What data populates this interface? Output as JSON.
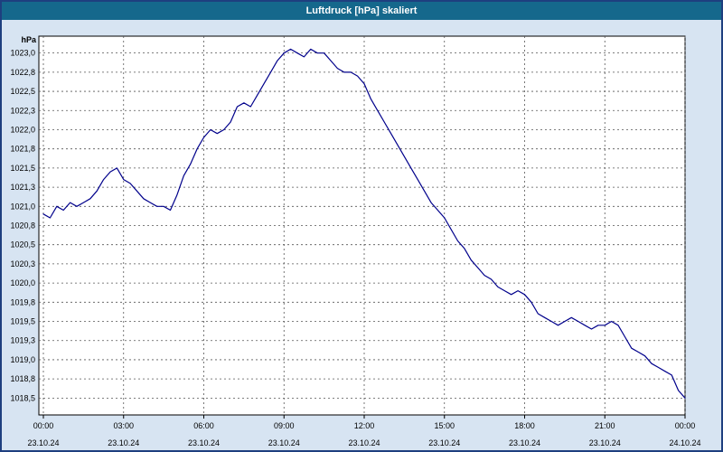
{
  "window": {
    "title": "Luftdruck [hPa] skaliert"
  },
  "colors": {
    "titlebar": "#15688c",
    "frame": "#1e3f7f",
    "background": "#d7e4f2",
    "plot_bg": "#ffffff",
    "grid": "#555555",
    "line": "#00008b"
  },
  "chart_data": {
    "type": "line",
    "title": "Luftdruck [hPa] skaliert",
    "ylabel": "hPa",
    "xlabel": "",
    "grid": true,
    "legend": false,
    "ylim": [
      1018.28,
      1023.22
    ],
    "xlim_hours": [
      0,
      24
    ],
    "interval_minutes": 15,
    "start_time": "00:00",
    "y_ticks": [
      {
        "value": 1023.0,
        "label": "1023,0"
      },
      {
        "value": 1022.75,
        "label": "1022,8"
      },
      {
        "value": 1022.5,
        "label": "1022,5"
      },
      {
        "value": 1022.25,
        "label": "1022,3"
      },
      {
        "value": 1022.0,
        "label": "1022,0"
      },
      {
        "value": 1021.75,
        "label": "1021,8"
      },
      {
        "value": 1021.5,
        "label": "1021,5"
      },
      {
        "value": 1021.25,
        "label": "1021,3"
      },
      {
        "value": 1021.0,
        "label": "1021,0"
      },
      {
        "value": 1020.75,
        "label": "1020,8"
      },
      {
        "value": 1020.5,
        "label": "1020,5"
      },
      {
        "value": 1020.25,
        "label": "1020,3"
      },
      {
        "value": 1020.0,
        "label": "1020,0"
      },
      {
        "value": 1019.75,
        "label": "1019,8"
      },
      {
        "value": 1019.5,
        "label": "1019,5"
      },
      {
        "value": 1019.25,
        "label": "1019,3"
      },
      {
        "value": 1019.0,
        "label": "1019,0"
      },
      {
        "value": 1018.75,
        "label": "1018,8"
      },
      {
        "value": 1018.5,
        "label": "1018,5"
      }
    ],
    "x_ticks": [
      {
        "hour": 0,
        "time": "00:00",
        "date": "23.10.24"
      },
      {
        "hour": 3,
        "time": "03:00",
        "date": "23.10.24"
      },
      {
        "hour": 6,
        "time": "06:00",
        "date": "23.10.24"
      },
      {
        "hour": 9,
        "time": "09:00",
        "date": "23.10.24"
      },
      {
        "hour": 12,
        "time": "12:00",
        "date": "23.10.24"
      },
      {
        "hour": 15,
        "time": "15:00",
        "date": "23.10.24"
      },
      {
        "hour": 18,
        "time": "18:00",
        "date": "23.10.24"
      },
      {
        "hour": 21,
        "time": "21:00",
        "date": "23.10.24"
      },
      {
        "hour": 24,
        "time": "00:00",
        "date": "24.10.24"
      }
    ],
    "series": [
      {
        "name": "Luftdruck",
        "values": [
          1020.9,
          1020.85,
          1021.0,
          1020.95,
          1021.05,
          1021.0,
          1021.05,
          1021.1,
          1021.2,
          1021.35,
          1021.45,
          1021.5,
          1021.35,
          1021.3,
          1021.2,
          1021.1,
          1021.05,
          1021.0,
          1021.0,
          1020.95,
          1021.15,
          1021.4,
          1021.55,
          1021.75,
          1021.9,
          1022.0,
          1021.95,
          1022.0,
          1022.1,
          1022.3,
          1022.35,
          1022.3,
          1022.45,
          1022.6,
          1022.75,
          1022.9,
          1023.0,
          1023.05,
          1023.0,
          1022.95,
          1023.05,
          1023.0,
          1023.0,
          1022.9,
          1022.8,
          1022.75,
          1022.75,
          1022.7,
          1022.6,
          1022.4,
          1022.25,
          1022.1,
          1021.95,
          1021.8,
          1021.65,
          1021.5,
          1021.35,
          1021.2,
          1021.05,
          1020.95,
          1020.85,
          1020.7,
          1020.55,
          1020.45,
          1020.3,
          1020.2,
          1020.1,
          1020.05,
          1019.95,
          1019.9,
          1019.85,
          1019.9,
          1019.85,
          1019.75,
          1019.6,
          1019.55,
          1019.5,
          1019.45,
          1019.5,
          1019.55,
          1019.5,
          1019.45,
          1019.4,
          1019.45,
          1019.45,
          1019.5,
          1019.45,
          1019.3,
          1019.15,
          1019.1,
          1019.05,
          1018.95,
          1018.9,
          1018.85,
          1018.8,
          1018.6,
          1018.5
        ]
      }
    ]
  }
}
